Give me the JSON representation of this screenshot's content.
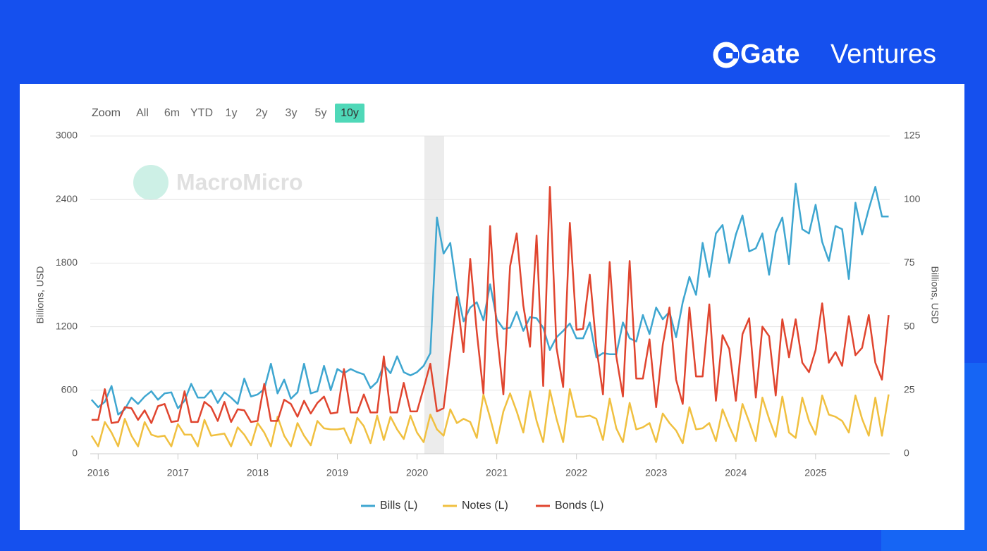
{
  "brand": {
    "name": "Gate",
    "suffix": "Ventures"
  },
  "zoom": {
    "label": "Zoom",
    "buttons": [
      "All",
      "6m",
      "YTD",
      "1y",
      "2y",
      "3y",
      "5y",
      "10y"
    ],
    "active": 7
  },
  "watermark": "MacroMicro",
  "chart_data": {
    "type": "line",
    "y_label": "Billions, USD",
    "y2_label": "Billions, USD",
    "xlim": [
      2015.9,
      2025.93
    ],
    "xticks": [
      2016,
      2017,
      2018,
      2019,
      2020,
      2021,
      2022,
      2023,
      2024,
      2025
    ],
    "ylim": [
      0,
      3000
    ],
    "yticks": [
      0,
      600,
      1200,
      1800,
      2400,
      3000
    ],
    "y2lim": [
      0,
      125
    ],
    "y2ticks": [
      0,
      25,
      50,
      75,
      100,
      125
    ],
    "grid": true,
    "legend": "bottom",
    "x": [
      2015.917,
      2016.0,
      2016.083,
      2016.167,
      2016.25,
      2016.333,
      2016.417,
      2016.5,
      2016.583,
      2016.667,
      2016.75,
      2016.833,
      2016.917,
      2017.0,
      2017.083,
      2017.167,
      2017.25,
      2017.333,
      2017.417,
      2017.5,
      2017.583,
      2017.667,
      2017.75,
      2017.833,
      2017.917,
      2018.0,
      2018.083,
      2018.167,
      2018.25,
      2018.333,
      2018.417,
      2018.5,
      2018.583,
      2018.667,
      2018.75,
      2018.833,
      2018.917,
      2019.0,
      2019.083,
      2019.167,
      2019.25,
      2019.333,
      2019.417,
      2019.5,
      2019.583,
      2019.667,
      2019.75,
      2019.833,
      2019.917,
      2020.0,
      2020.083,
      2020.167,
      2020.25,
      2020.333,
      2020.417,
      2020.5,
      2020.583,
      2020.667,
      2020.75,
      2020.833,
      2020.917,
      2021.0,
      2021.083,
      2021.167,
      2021.25,
      2021.333,
      2021.417,
      2021.5,
      2021.583,
      2021.667,
      2021.75,
      2021.833,
      2021.917,
      2022.0,
      2022.083,
      2022.167,
      2022.25,
      2022.333,
      2022.417,
      2022.5,
      2022.583,
      2022.667,
      2022.75,
      2022.833,
      2022.917,
      2023.0,
      2023.083,
      2023.167,
      2023.25,
      2023.333,
      2023.417,
      2023.5,
      2023.583,
      2023.667,
      2023.75,
      2023.833,
      2023.917,
      2024.0,
      2024.083,
      2024.167,
      2024.25,
      2024.333,
      2024.417,
      2024.5,
      2024.583,
      2024.667,
      2024.75,
      2024.833,
      2024.917,
      2025.0,
      2025.083,
      2025.167,
      2025.25,
      2025.333,
      2025.417,
      2025.5,
      2025.583,
      2025.667,
      2025.75,
      2025.833,
      2025.917
    ],
    "series": [
      {
        "name": "Bills (L)",
        "color": "#3ea6d0",
        "values": [
          510,
          440,
          490,
          640,
          370,
          420,
          530,
          470,
          540,
          590,
          510,
          570,
          580,
          430,
          500,
          660,
          530,
          530,
          600,
          480,
          580,
          530,
          470,
          710,
          540,
          560,
          610,
          850,
          570,
          700,
          520,
          580,
          850,
          570,
          590,
          830,
          600,
          800,
          760,
          800,
          770,
          750,
          620,
          680,
          840,
          760,
          920,
          770,
          740,
          770,
          830,
          950,
          2230,
          1890,
          1990,
          1550,
          1250,
          1380,
          1430,
          1260,
          1600,
          1270,
          1180,
          1190,
          1340,
          1160,
          1290,
          1280,
          1190,
          980,
          1100,
          1160,
          1230,
          1090,
          1090,
          1240,
          910,
          950,
          940,
          940,
          1240,
          1090,
          1060,
          1310,
          1130,
          1380,
          1270,
          1340,
          1100,
          1430,
          1670,
          1500,
          1990,
          1670,
          2080,
          2160,
          1800,
          2070,
          2250,
          1910,
          1940,
          2080,
          1690,
          2090,
          2230,
          1790,
          2550,
          2120,
          2080,
          2350,
          2000,
          1820,
          2150,
          2120,
          1650,
          2370,
          2070,
          2310,
          2520,
          2240,
          2240
        ]
      },
      {
        "name": "Notes (L)",
        "color": "#f0c040",
        "values": [
          170,
          70,
          300,
          200,
          70,
          330,
          170,
          70,
          300,
          180,
          160,
          170,
          70,
          280,
          180,
          180,
          70,
          320,
          170,
          180,
          190,
          70,
          250,
          180,
          80,
          290,
          200,
          70,
          350,
          170,
          70,
          290,
          170,
          80,
          310,
          240,
          230,
          230,
          240,
          100,
          340,
          260,
          100,
          360,
          130,
          350,
          230,
          140,
          360,
          200,
          110,
          370,
          230,
          170,
          420,
          290,
          330,
          300,
          150,
          560,
          340,
          100,
          400,
          570,
          400,
          200,
          590,
          310,
          110,
          600,
          330,
          110,
          610,
          350,
          350,
          360,
          330,
          130,
          520,
          240,
          110,
          480,
          230,
          250,
          290,
          110,
          380,
          290,
          220,
          100,
          440,
          230,
          240,
          290,
          120,
          420,
          260,
          120,
          470,
          300,
          120,
          530,
          330,
          160,
          540,
          200,
          150,
          530,
          310,
          180,
          550,
          370,
          350,
          310,
          200,
          550,
          330,
          170,
          530,
          170,
          560
        ]
      },
      {
        "name": "Bonds (L)",
        "color": "#e0452f",
        "values": [
          320,
          320,
          610,
          290,
          300,
          440,
          430,
          320,
          410,
          290,
          450,
          470,
          300,
          310,
          590,
          300,
          300,
          490,
          440,
          310,
          490,
          300,
          420,
          410,
          300,
          310,
          660,
          310,
          310,
          510,
          470,
          350,
          500,
          380,
          480,
          540,
          380,
          390,
          800,
          390,
          390,
          560,
          390,
          390,
          920,
          390,
          390,
          670,
          400,
          400,
          620,
          850,
          400,
          430,
          950,
          1480,
          960,
          1840,
          1150,
          570,
          2150,
          1150,
          560,
          1770,
          2080,
          1400,
          1010,
          2060,
          640,
          2520,
          1000,
          630,
          2180,
          1170,
          1180,
          1690,
          1010,
          560,
          1810,
          920,
          540,
          1820,
          710,
          710,
          1080,
          440,
          1030,
          1380,
          700,
          470,
          1380,
          730,
          730,
          1410,
          500,
          1120,
          990,
          500,
          1130,
          1280,
          530,
          1200,
          1110,
          550,
          1270,
          910,
          1270,
          860,
          770,
          980,
          1420,
          860,
          960,
          830,
          1300,
          930,
          1000,
          1310,
          860,
          700,
          1310
        ]
      }
    ]
  }
}
